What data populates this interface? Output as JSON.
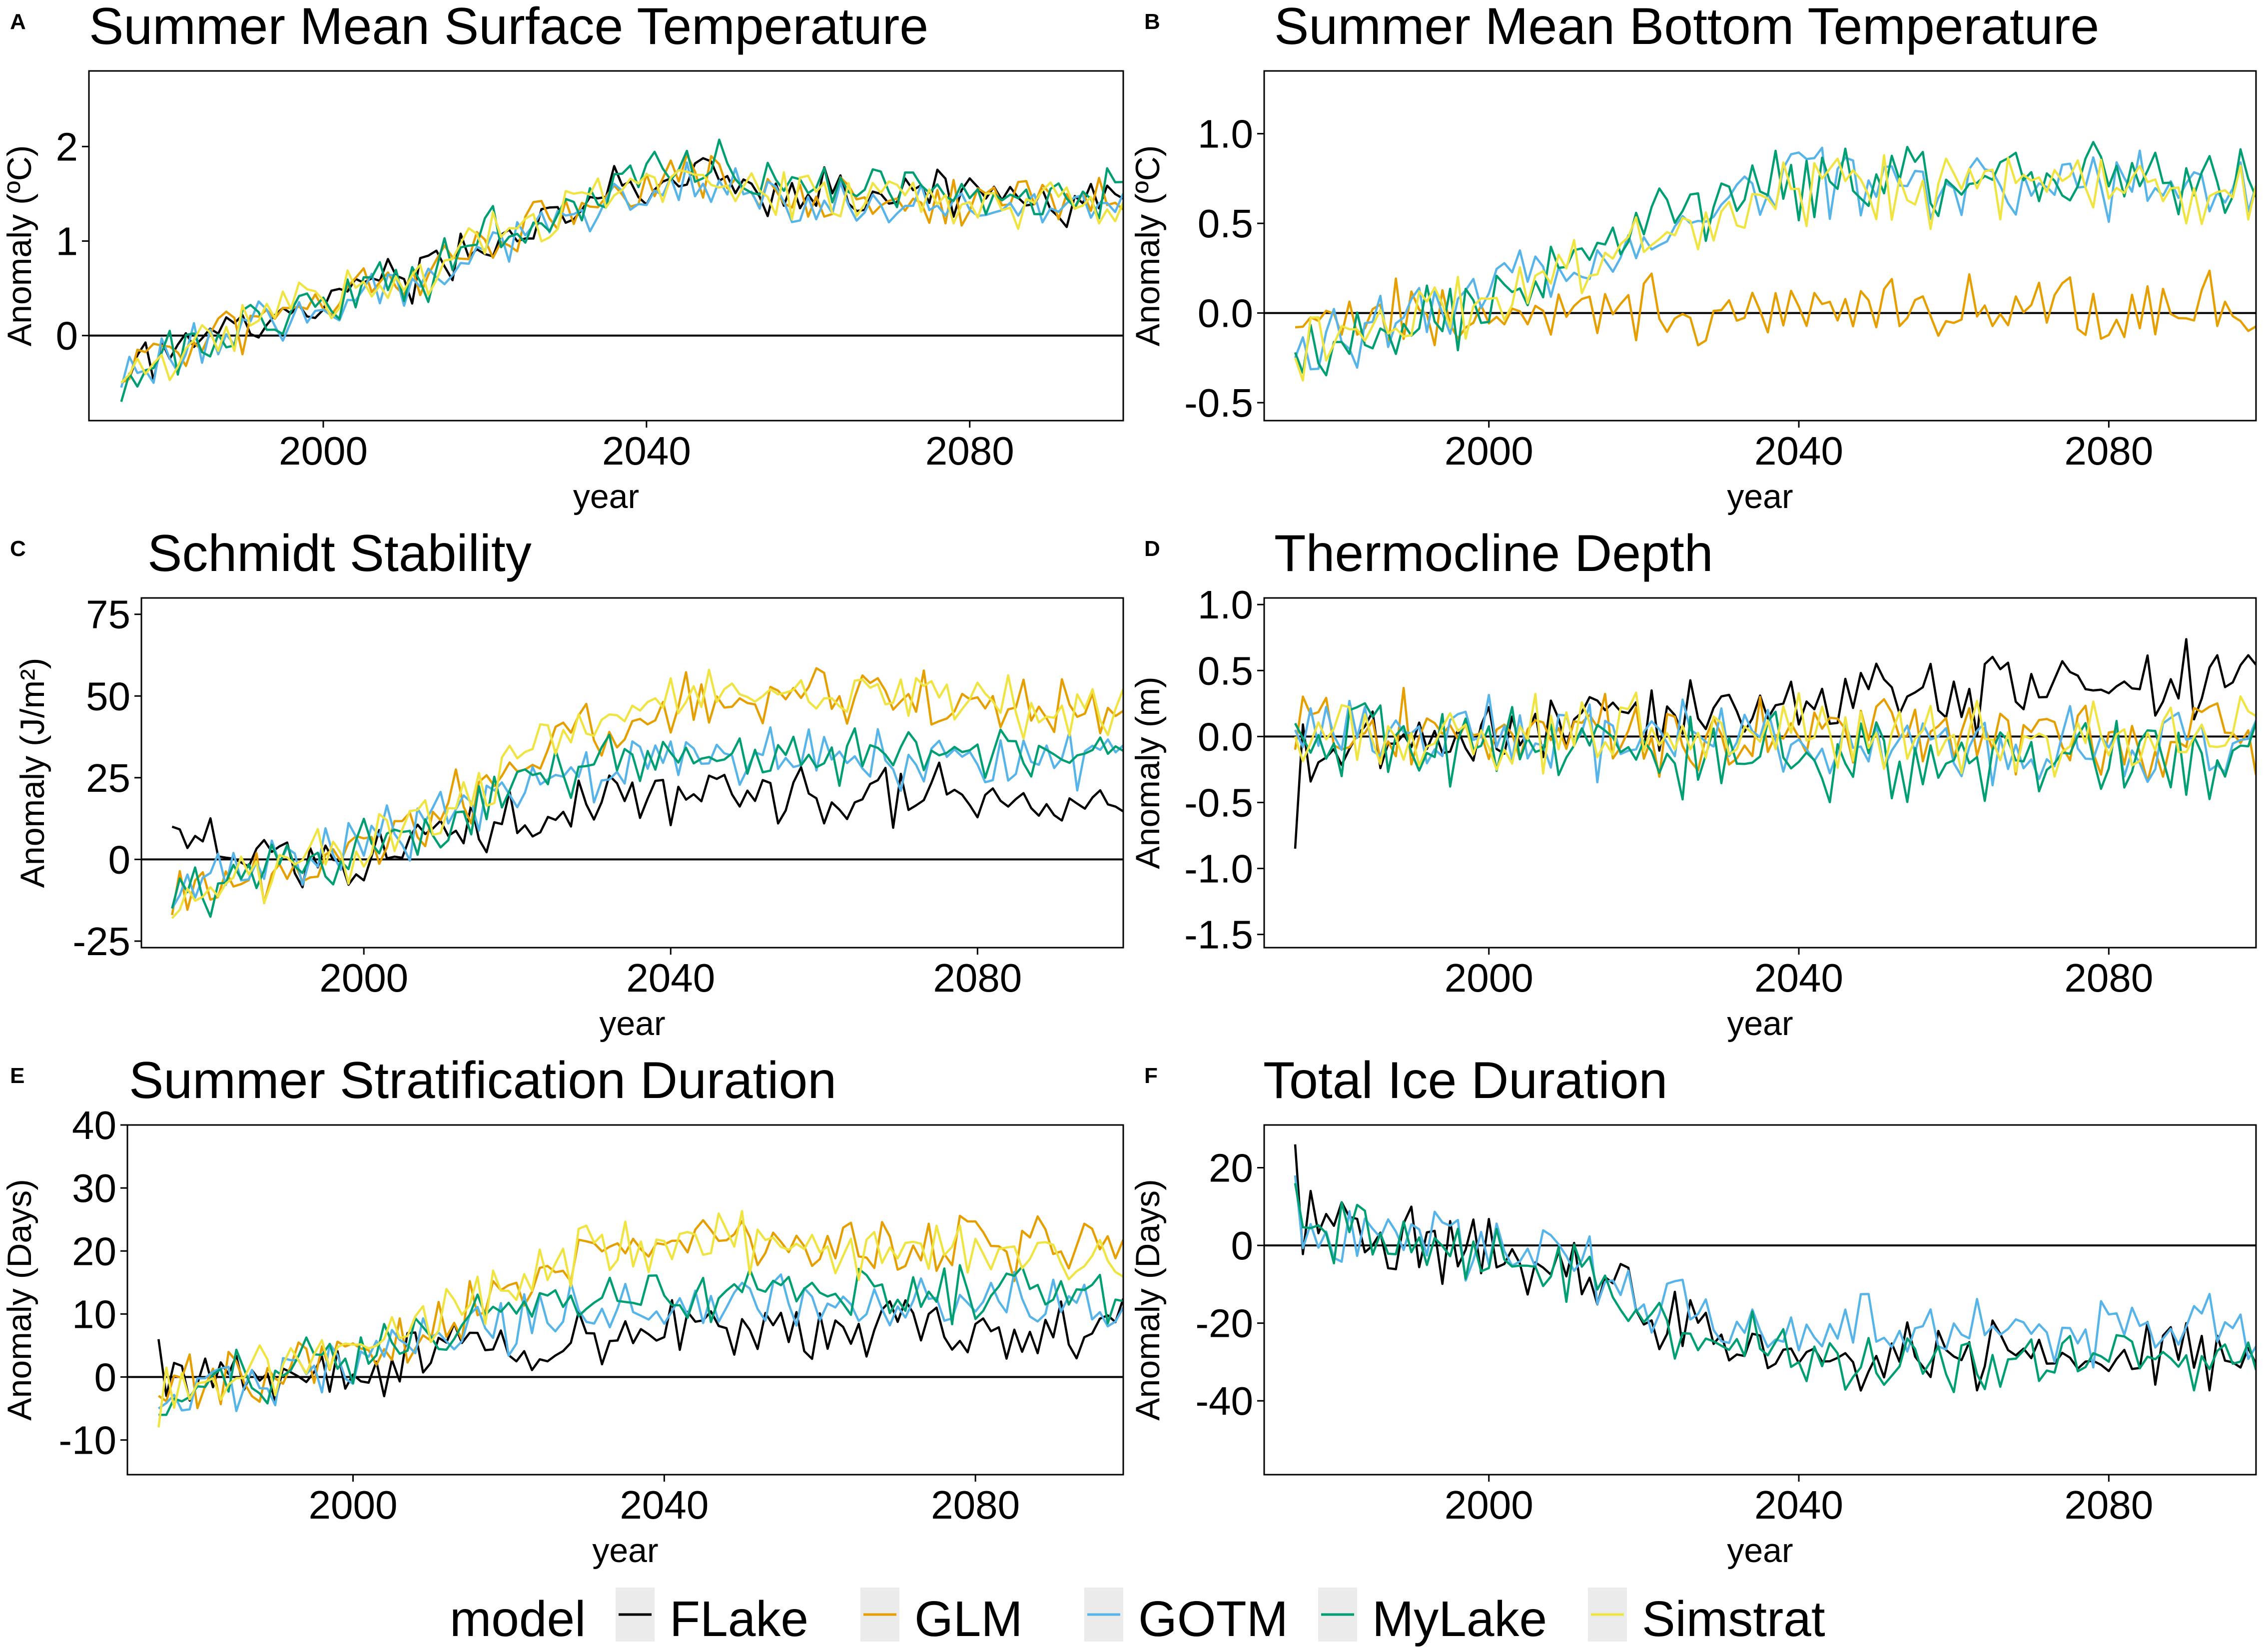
{
  "legend": {
    "title": "model",
    "entries": [
      {
        "name": "FLake",
        "color": "#000000"
      },
      {
        "name": "GLM",
        "color": "#E69F00"
      },
      {
        "name": "GOTM",
        "color": "#56B4E9"
      },
      {
        "name": "MyLake",
        "color": "#009E73"
      },
      {
        "name": "Simstrat",
        "color": "#F0E442"
      }
    ],
    "placement": "bottom"
  },
  "chart_data": [
    {
      "panel": "A",
      "type": "line",
      "title": "Summer Mean Surface Temperature",
      "xlabel": "year",
      "ylabel": "Anomaly (ºC)",
      "xlim": [
        1971,
        2099
      ],
      "ylim": [
        -0.9,
        2.8
      ],
      "xticks": [
        2000,
        2040,
        2080
      ],
      "yticks": [
        0,
        1,
        2
      ],
      "ytick_labels": [
        "0",
        "1",
        "2"
      ],
      "zero_line": true,
      "grid": false,
      "noise": 0.25,
      "gen_models": [
        "FLake",
        "GLM",
        "GOTM",
        "MyLake",
        "Simstrat"
      ],
      "series": [
        {
          "name": "FLake",
          "start": -0.5,
          "anchors": [
            [
              1975,
              -0.4
            ],
            [
              2000,
              0.4
            ],
            [
              2012,
              0.6
            ],
            [
              2020,
              1.0
            ],
            [
              2035,
              1.5
            ],
            [
              2048,
              1.8
            ],
            [
              2055,
              1.5
            ],
            [
              2099,
              1.45
            ]
          ]
        },
        {
          "name": "GLM",
          "start": -0.5,
          "anchors": [
            [
              1975,
              -0.4
            ],
            [
              2000,
              0.4
            ],
            [
              2012,
              0.6
            ],
            [
              2020,
              1.0
            ],
            [
              2035,
              1.5
            ],
            [
              2048,
              1.75
            ],
            [
              2055,
              1.45
            ],
            [
              2099,
              1.4
            ]
          ]
        },
        {
          "name": "GOTM",
          "start": -0.55,
          "anchors": [
            [
              1975,
              -0.45
            ],
            [
              2000,
              0.35
            ],
            [
              2012,
              0.55
            ],
            [
              2020,
              0.95
            ],
            [
              2035,
              1.45
            ],
            [
              2048,
              1.7
            ],
            [
              2055,
              1.4
            ],
            [
              2099,
              1.35
            ]
          ]
        },
        {
          "name": "MyLake",
          "start": -0.7,
          "anchors": [
            [
              1975,
              -0.45
            ],
            [
              2000,
              0.4
            ],
            [
              2012,
              0.6
            ],
            [
              2020,
              1.05
            ],
            [
              2035,
              1.55
            ],
            [
              2048,
              1.85
            ],
            [
              2055,
              1.55
            ],
            [
              2099,
              1.5
            ]
          ]
        },
        {
          "name": "Simstrat",
          "start": -0.5,
          "anchors": [
            [
              1975,
              -0.4
            ],
            [
              2000,
              0.4
            ],
            [
              2012,
              0.6
            ],
            [
              2020,
              1.0
            ],
            [
              2035,
              1.5
            ],
            [
              2048,
              1.75
            ],
            [
              2055,
              1.45
            ],
            [
              2099,
              1.4
            ]
          ]
        }
      ]
    },
    {
      "panel": "B",
      "type": "line",
      "title": "Summer Mean Bottom Temperature",
      "xlabel": "year",
      "ylabel": "Anomaly (ºC)",
      "xlim": [
        1971,
        2099
      ],
      "ylim": [
        -0.6,
        1.35
      ],
      "xticks": [
        2000,
        2040,
        2080
      ],
      "yticks": [
        -0.5,
        0.0,
        0.5,
        1.0
      ],
      "ytick_labels": [
        "-0.5",
        "0.0",
        "0.5",
        "1.0"
      ],
      "zero_line": true,
      "grid": false,
      "noise": 0.35,
      "gen_models": [
        "GLM",
        "GOTM",
        "MyLake",
        "Simstrat"
      ],
      "series": [
        {
          "name": "GLM",
          "start": -0.08,
          "anchors": [
            [
              1975,
              -0.05
            ],
            [
              2000,
              -0.02
            ],
            [
              2020,
              0.0
            ],
            [
              2040,
              0.04
            ],
            [
              2099,
              0.05
            ]
          ]
        },
        {
          "name": "GOTM",
          "start": -0.25,
          "anchors": [
            [
              1975,
              -0.2
            ],
            [
              1995,
              0.05
            ],
            [
              2015,
              0.35
            ],
            [
              2030,
              0.6
            ],
            [
              2045,
              0.75
            ],
            [
              2099,
              0.7
            ]
          ]
        },
        {
          "name": "MyLake",
          "start": -0.22,
          "anchors": [
            [
              1975,
              -0.2
            ],
            [
              1995,
              0.0
            ],
            [
              2015,
              0.4
            ],
            [
              2030,
              0.65
            ],
            [
              2045,
              0.75
            ],
            [
              2099,
              0.72
            ]
          ]
        },
        {
          "name": "Simstrat",
          "start": -0.25,
          "anchors": [
            [
              1975,
              -0.2
            ],
            [
              1995,
              0.0
            ],
            [
              2015,
              0.3
            ],
            [
              2030,
              0.55
            ],
            [
              2045,
              0.7
            ],
            [
              2099,
              0.68
            ]
          ]
        }
      ]
    },
    {
      "panel": "C",
      "type": "line",
      "title": "Schmidt Stability",
      "xlabel": "year",
      "ylabel": "Anomaly (J/m²)",
      "xlim": [
        1971,
        2099
      ],
      "ylim": [
        -27,
        80
      ],
      "xticks": [
        2000,
        2040,
        2080
      ],
      "yticks": [
        -25,
        0,
        25,
        50,
        75
      ],
      "ytick_labels": [
        "-25",
        "0",
        "25",
        "50",
        "75"
      ],
      "zero_line": true,
      "grid": false,
      "noise": 0.3,
      "gen_models": [
        "FLake",
        "GLM",
        "GOTM",
        "MyLake",
        "Simstrat"
      ],
      "series": [
        {
          "name": "FLake",
          "start": 10,
          "anchors": [
            [
              1975,
              5
            ],
            [
              1995,
              0
            ],
            [
              2015,
              10
            ],
            [
              2030,
              18
            ],
            [
              2050,
              20
            ],
            [
              2099,
              18
            ]
          ]
        },
        {
          "name": "GLM",
          "start": -17,
          "anchors": [
            [
              1975,
              -12
            ],
            [
              1995,
              0
            ],
            [
              2010,
              15
            ],
            [
              2025,
              35
            ],
            [
              2040,
              48
            ],
            [
              2060,
              50
            ],
            [
              2099,
              45
            ]
          ]
        },
        {
          "name": "GOTM",
          "start": -15,
          "anchors": [
            [
              1975,
              -10
            ],
            [
              1995,
              0
            ],
            [
              2010,
              12
            ],
            [
              2025,
              25
            ],
            [
              2040,
              30
            ],
            [
              2099,
              30
            ]
          ]
        },
        {
          "name": "MyLake",
          "start": -15,
          "anchors": [
            [
              1975,
              -10
            ],
            [
              1995,
              0
            ],
            [
              2010,
              12
            ],
            [
              2025,
              27
            ],
            [
              2040,
              33
            ],
            [
              2099,
              33
            ]
          ]
        },
        {
          "name": "Simstrat",
          "start": -18,
          "anchors": [
            [
              1975,
              -12
            ],
            [
              1995,
              0
            ],
            [
              2010,
              15
            ],
            [
              2025,
              38
            ],
            [
              2040,
              50
            ],
            [
              2060,
              52
            ],
            [
              2099,
              45
            ]
          ]
        }
      ]
    },
    {
      "panel": "D",
      "type": "line",
      "title": "Thermocline Depth",
      "xlabel": "year",
      "ylabel": "Anomaly (m)",
      "xlim": [
        1971,
        2099
      ],
      "ylim": [
        -1.6,
        1.05
      ],
      "xticks": [
        2000,
        2040,
        2080
      ],
      "yticks": [
        -1.5,
        -1.0,
        -0.5,
        0.0,
        0.5,
        1.0
      ],
      "ytick_labels": [
        "-1.5",
        "-1.0",
        "-0.5",
        "0.0",
        "0.5",
        "1.0"
      ],
      "zero_line": true,
      "grid": false,
      "noise": 0.4,
      "gen_models": [
        "FLake",
        "GLM",
        "GOTM",
        "MyLake",
        "Simstrat"
      ],
      "series": [
        {
          "name": "FLake",
          "start": -0.85,
          "anchors": [
            [
              1975,
              -0.2
            ],
            [
              1990,
              0.05
            ],
            [
              2020,
              0.15
            ],
            [
              2050,
              0.25
            ],
            [
              2070,
              0.35
            ],
            [
              2099,
              0.45
            ]
          ]
        },
        {
          "name": "GLM",
          "start": -0.1,
          "anchors": [
            [
              1975,
              0.0
            ],
            [
              2099,
              0.0
            ]
          ]
        },
        {
          "name": "GOTM",
          "start": 0.05,
          "anchors": [
            [
              1975,
              0.0
            ],
            [
              2040,
              -0.05
            ],
            [
              2099,
              -0.05
            ]
          ]
        },
        {
          "name": "MyLake",
          "start": 0.1,
          "anchors": [
            [
              1975,
              0.0
            ],
            [
              2040,
              -0.15
            ],
            [
              2099,
              -0.15
            ]
          ]
        },
        {
          "name": "Simstrat",
          "start": 0.0,
          "anchors": [
            [
              1975,
              0.0
            ],
            [
              2099,
              0.0
            ]
          ]
        }
      ]
    },
    {
      "panel": "E",
      "type": "line",
      "title": "Summer Stratification Duration",
      "xlabel": "year",
      "ylabel": "Anomaly (Days)",
      "xlim": [
        1971,
        2099
      ],
      "ylim": [
        -15.5,
        40
      ],
      "xticks": [
        2000,
        2040,
        2080
      ],
      "yticks": [
        -10,
        0,
        10,
        20,
        30,
        40
      ],
      "ytick_labels": [
        "-10",
        "0",
        "10",
        "20",
        "30",
        "40"
      ],
      "zero_line": true,
      "grid": false,
      "noise": 0.3,
      "gen_models": [
        "FLake",
        "GLM",
        "GOTM",
        "MyLake",
        "Simstrat"
      ],
      "series": [
        {
          "name": "FLake",
          "start": 6,
          "anchors": [
            [
              1975,
              0
            ],
            [
              1995,
              0
            ],
            [
              2015,
              5
            ],
            [
              2040,
              8
            ],
            [
              2099,
              7
            ]
          ]
        },
        {
          "name": "GLM",
          "start": -3,
          "anchors": [
            [
              1975,
              -3
            ],
            [
              1995,
              2
            ],
            [
              2015,
              10
            ],
            [
              2030,
              18
            ],
            [
              2045,
              22
            ],
            [
              2099,
              20
            ]
          ]
        },
        {
          "name": "GOTM",
          "start": -5,
          "anchors": [
            [
              1975,
              -3
            ],
            [
              1995,
              2
            ],
            [
              2015,
              7
            ],
            [
              2030,
              11
            ],
            [
              2099,
              12
            ]
          ]
        },
        {
          "name": "MyLake",
          "start": -6,
          "anchors": [
            [
              1975,
              -4
            ],
            [
              1995,
              2
            ],
            [
              2015,
              8
            ],
            [
              2030,
              13
            ],
            [
              2099,
              14
            ]
          ]
        },
        {
          "name": "Simstrat",
          "start": -8,
          "anchors": [
            [
              1975,
              -3
            ],
            [
              1995,
              3
            ],
            [
              2015,
              12
            ],
            [
              2030,
              20
            ],
            [
              2045,
              22
            ],
            [
              2099,
              19
            ]
          ]
        }
      ]
    },
    {
      "panel": "F",
      "type": "line",
      "title": "Total Ice Duration",
      "xlabel": "year",
      "ylabel": "Anomaly (Days)",
      "xlim": [
        1971,
        2099
      ],
      "ylim": [
        -59,
        31
      ],
      "xticks": [
        2000,
        2040,
        2080
      ],
      "yticks": [
        -40,
        -20,
        0,
        20
      ],
      "ytick_labels": [
        "-40",
        "-20",
        "0",
        "20"
      ],
      "zero_line": true,
      "grid": false,
      "noise": 0.35,
      "gen_models": [
        "FLake",
        "GOTM",
        "MyLake"
      ],
      "series": [
        {
          "name": "FLake",
          "start": 26,
          "anchors": [
            [
              1975,
              8
            ],
            [
              1990,
              0
            ],
            [
              2010,
              -3
            ],
            [
              2020,
              -18
            ],
            [
              2040,
              -28
            ],
            [
              2060,
              -30
            ],
            [
              2099,
              -28
            ]
          ]
        },
        {
          "name": "GOTM",
          "start": 18,
          "anchors": [
            [
              1975,
              6
            ],
            [
              1990,
              0
            ],
            [
              2010,
              -3
            ],
            [
              2020,
              -15
            ],
            [
              2040,
              -22
            ],
            [
              2060,
              -22
            ],
            [
              2099,
              -20
            ]
          ]
        },
        {
          "name": "MyLake",
          "start": 16,
          "anchors": [
            [
              1975,
              6
            ],
            [
              1990,
              -2
            ],
            [
              2010,
              -5
            ],
            [
              2020,
              -20
            ],
            [
              2040,
              -28
            ],
            [
              2060,
              -30
            ],
            [
              2099,
              -28
            ]
          ]
        }
      ]
    }
  ]
}
